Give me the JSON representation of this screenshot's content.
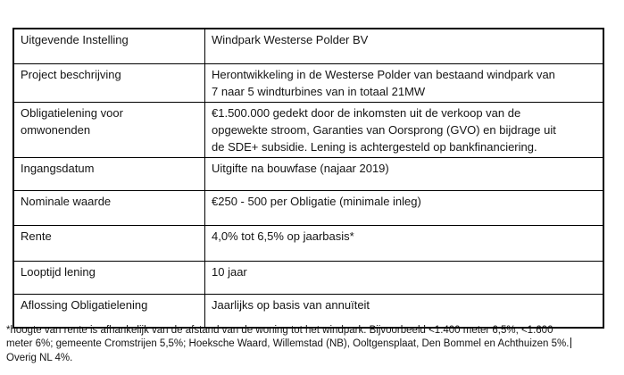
{
  "document": {
    "table": {
      "rows": [
        {
          "label": "Uitgevende Instelling",
          "value": "Windpark Westerse Polder BV"
        },
        {
          "label": "Project beschrijving",
          "value": "Herontwikkeling in de Westerse Polder van bestaand windpark van\n7 naar 5 windturbines van in totaal 21MW"
        },
        {
          "label": "Obligatielening voor\nomwonenden",
          "value": "€1.500.000 gedekt door de inkomsten uit de verkoop van de\nopgewekte stroom, Garanties van Oorsprong (GVO) en bijdrage uit\nde SDE+ subsidie. Lening is achtergesteld op bankfinanciering."
        },
        {
          "label": "Ingangsdatum",
          "value": "Uitgifte na bouwfase (najaar 2019)"
        },
        {
          "label": "Nominale waarde",
          "value": "€250 - 500 per Obligatie (minimale inleg)"
        },
        {
          "label": "Rente",
          "value": "4,0% tot 6,5% op jaarbasis*"
        },
        {
          "label": "Looptijd lening",
          "value": "10 jaar"
        },
        {
          "label": "Aflossing Obligatielening",
          "value": "Jaarlijks op basis van annuïteit"
        }
      ]
    },
    "footnote": {
      "lines": [
        "*hoogte van rente is afhankelijk van de afstand van de woning tot het windpark. Bijvoorbeeld <1.400 meter 6,5%; <1.600",
        "meter 6%; gemeente Cromstrijen 5,5%; Hoeksche Waard, Willemstad (NB), Ooltgensplaat, Den Bommel en Achthuizen 5%.",
        "Overig NL 4%."
      ]
    },
    "colors": {
      "text": "#141414",
      "border": "#000000",
      "background": "#ffffff"
    }
  }
}
